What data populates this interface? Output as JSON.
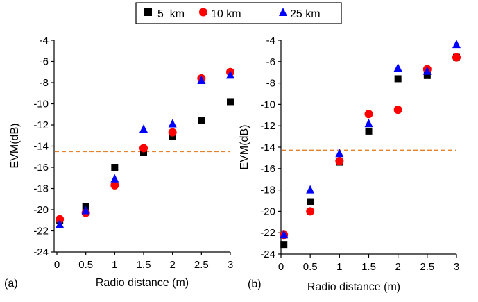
{
  "legend": {
    "series": [
      {
        "name": "5  km",
        "color": "#000000",
        "marker": "square"
      },
      {
        "name": "10 km",
        "color": "#ff0000",
        "marker": "circle"
      },
      {
        "name": "25 km",
        "color": "#0000ff",
        "marker": "triangle"
      }
    ]
  },
  "reference_line_color": "#e8822a",
  "chart_data": [
    {
      "type": "scatter",
      "panel_label": "(a)",
      "xlabel": "Radio distance (m)",
      "ylabel": "EVM(dB)",
      "xlim": [
        0,
        3
      ],
      "ylim": [
        -24,
        -4
      ],
      "xticks": [
        "0",
        "0.5",
        "1",
        "1.5",
        "2",
        "2.5",
        "3"
      ],
      "yticks": [
        "-4",
        "-6",
        "-8",
        "-10",
        "-12",
        "-14",
        "-16",
        "-18",
        "-20",
        "-22",
        "-24"
      ],
      "reference_line_y": -14.5,
      "series": [
        {
          "name": "5  km",
          "points": [
            [
              0.05,
              -21.0
            ],
            [
              0.5,
              -19.7
            ],
            [
              1.0,
              -16.0
            ],
            [
              1.5,
              -14.6
            ],
            [
              2.0,
              -13.1
            ],
            [
              2.5,
              -11.6
            ],
            [
              3.0,
              -9.8
            ]
          ]
        },
        {
          "name": "10 km",
          "points": [
            [
              0.05,
              -20.9
            ],
            [
              0.5,
              -20.3
            ],
            [
              1.0,
              -17.7
            ],
            [
              1.5,
              -14.2
            ],
            [
              2.0,
              -12.7
            ],
            [
              2.5,
              -7.6
            ],
            [
              3.0,
              -7.0
            ]
          ]
        },
        {
          "name": "25 km",
          "points": [
            [
              0.05,
              -21.4
            ],
            [
              0.5,
              -20.1
            ],
            [
              1.0,
              -17.1
            ],
            [
              1.5,
              -12.4
            ],
            [
              2.0,
              -11.9
            ],
            [
              2.5,
              -7.8
            ],
            [
              3.0,
              -7.3
            ]
          ]
        }
      ]
    },
    {
      "type": "scatter",
      "panel_label": "(b)",
      "xlabel": "Radio distance (m)",
      "ylabel": "EVM(dB)",
      "xlim": [
        0,
        3
      ],
      "ylim": [
        -24,
        -4
      ],
      "xticks": [
        "0",
        "0.5",
        "1",
        "1.5",
        "2",
        "2.5",
        "3"
      ],
      "yticks": [
        "-4",
        "-6",
        "-8",
        "-10",
        "-12",
        "-14",
        "-16",
        "-18",
        "-20",
        "-22",
        "-24"
      ],
      "reference_line_y": -14.3,
      "series": [
        {
          "name": "5  km",
          "points": [
            [
              0.05,
              -23.1
            ],
            [
              0.5,
              -19.1
            ],
            [
              1.0,
              -15.4
            ],
            [
              1.5,
              -12.5
            ],
            [
              2.0,
              -7.6
            ],
            [
              2.5,
              -7.3
            ],
            [
              3.0,
              -5.6
            ]
          ]
        },
        {
          "name": "10 km",
          "points": [
            [
              0.05,
              -22.2
            ],
            [
              0.5,
              -20.0
            ],
            [
              1.0,
              -15.3
            ],
            [
              1.5,
              -10.9
            ],
            [
              2.0,
              -10.5
            ],
            [
              2.5,
              -6.7
            ],
            [
              3.0,
              -5.6
            ]
          ]
        },
        {
          "name": "25 km",
          "points": [
            [
              0.05,
              -22.2
            ],
            [
              0.5,
              -18.0
            ],
            [
              1.0,
              -14.6
            ],
            [
              1.5,
              -11.8
            ],
            [
              2.0,
              -6.6
            ],
            [
              2.5,
              -6.9
            ],
            [
              3.0,
              -4.4
            ]
          ]
        }
      ]
    }
  ]
}
